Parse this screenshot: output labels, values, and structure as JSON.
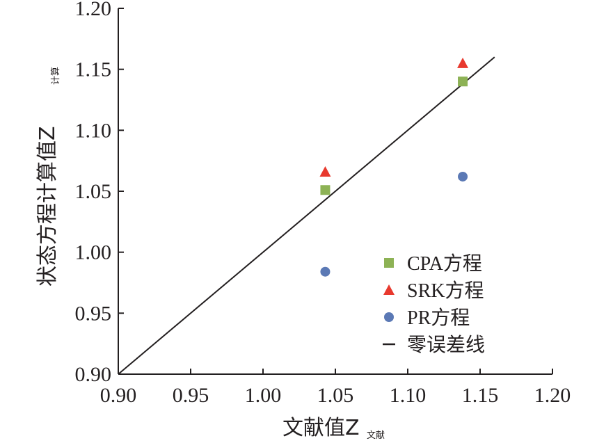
{
  "chart_data": {
    "type": "scatter",
    "xlabel": "文献值Z",
    "xlabel_sub": "文献",
    "ylabel": "状态方程计算值Z",
    "ylabel_sub": "计算",
    "xlim": [
      0.9,
      1.2
    ],
    "ylim": [
      0.9,
      1.2
    ],
    "xticks": [
      "0.90",
      "0.95",
      "1.00",
      "1.05",
      "1.10",
      "1.15",
      "1.20"
    ],
    "yticks": [
      "0.90",
      "0.95",
      "1.00",
      "1.05",
      "1.10",
      "1.15",
      "1.20"
    ],
    "grid": false,
    "legend_position": "bottom-right",
    "series": [
      {
        "name": "CPA方程",
        "marker": "square",
        "color": "#8db255",
        "points": [
          [
            1.043,
            1.051
          ],
          [
            1.138,
            1.14
          ]
        ]
      },
      {
        "name": "SRK方程",
        "marker": "triangle",
        "color": "#e8392e",
        "points": [
          [
            1.043,
            1.066
          ],
          [
            1.138,
            1.155
          ]
        ]
      },
      {
        "name": "PR方程",
        "marker": "circle",
        "color": "#5b79b5",
        "points": [
          [
            1.043,
            0.984
          ],
          [
            1.138,
            1.062
          ]
        ]
      }
    ],
    "reference_line": {
      "name": "零误差线",
      "color": "#231f20",
      "points": [
        [
          0.9,
          0.9
        ],
        [
          1.16,
          1.16
        ]
      ]
    }
  }
}
